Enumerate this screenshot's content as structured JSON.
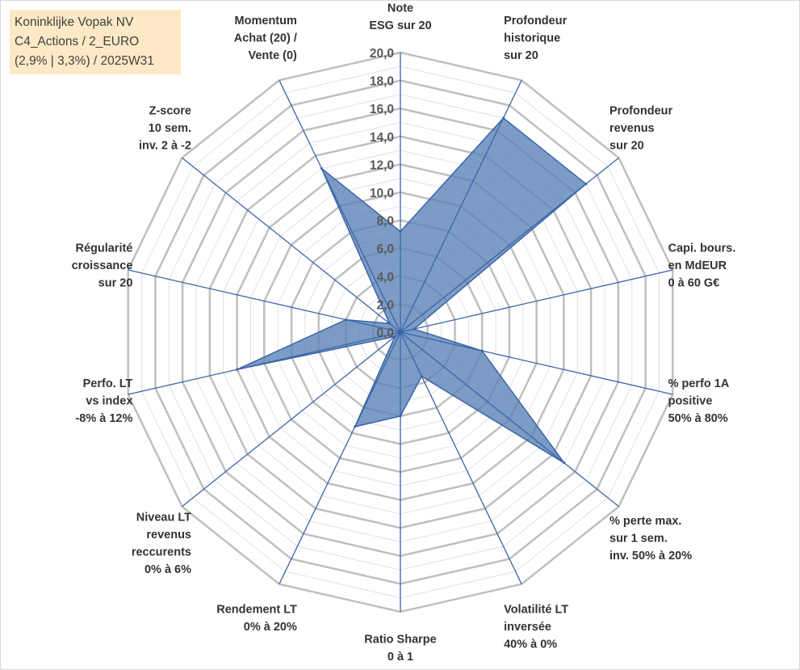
{
  "info_box": {
    "line1": "Koninklijke Vopak NV",
    "line2": "C4_Actions / 2_EURO",
    "line3": "(2,9% | 3,3%) / 2025W31"
  },
  "colors": {
    "fill": "#5b83b7",
    "stroke": "#3a64a8",
    "spoke": "#3a64a8",
    "major_grid": "#bfbfbf",
    "minor_grid": "#e0e0e0",
    "info_box_bg": "#fde9c5"
  },
  "chart_data": {
    "type": "radar",
    "grid": true,
    "rmax": 20,
    "ticks": [
      "0,0",
      "2,0",
      "4,0",
      "6,0",
      "8,0",
      "10,0",
      "12,0",
      "14,0",
      "16,0",
      "18,0",
      "20,0"
    ],
    "categories": [
      [
        "Note",
        "ESG sur 20"
      ],
      [
        "Profondeur",
        "historique",
        "sur 20"
      ],
      [
        "Profondeur",
        "revenus",
        "sur 20"
      ],
      [
        "Capi. bours.",
        "en MdEUR",
        "0 à 60 G€"
      ],
      [
        "% perfo 1A",
        "positive",
        "50% à 80%"
      ],
      [
        "% perte max.",
        "sur 1 sem.",
        "inv. 50% à 20%"
      ],
      [
        "Volatilité LT",
        "inversée",
        "40% à 0%"
      ],
      [
        "Ratio Sharpe",
        "0 à 1"
      ],
      [
        "Rendement LT",
        "0% à 20%"
      ],
      [
        "Niveau LT",
        "revenus",
        "reccurents",
        "0% à 6%"
      ],
      [
        "Perfo. LT",
        "vs index",
        "-8% à 12%"
      ],
      [
        "Régularité",
        "croissance",
        "sur 20"
      ],
      [
        "Z-score",
        "10 sem.",
        "inv. 2 à -2"
      ],
      [
        "Momentum",
        "Achat (20) /",
        "Vente (0)"
      ]
    ],
    "series": [
      {
        "values": [
          7.2,
          17.0,
          17.0,
          1.0,
          6.0,
          15.0,
          3.5,
          6.0,
          7.5,
          0.5,
          12.0,
          4.0,
          1.0,
          13.0
        ]
      }
    ]
  }
}
